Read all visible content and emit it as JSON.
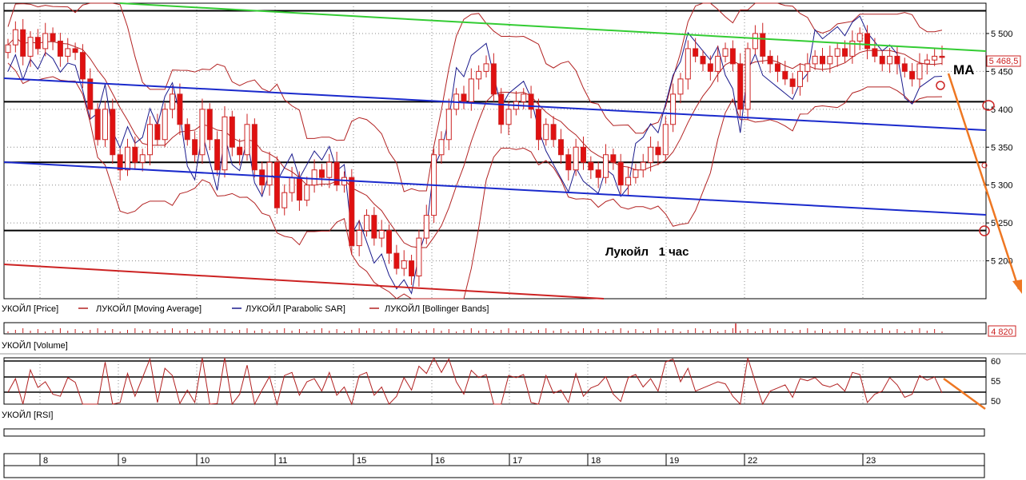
{
  "price_panel": {
    "annotation": "Лукойл   1 час",
    "ma_label": "MA",
    "last_price_badge": "5 468,5",
    "y_ticks": [
      "5 500",
      "5 450",
      "5 400",
      "5 350",
      "5 300",
      "5 250",
      "5 200"
    ],
    "legend": [
      {
        "label": "УКОЙЛ [Price]",
        "color": "#000000"
      },
      {
        "label": "ЛУКОЙЛ [Moving Average]",
        "color": "#b22222"
      },
      {
        "label": "ЛУКОЙЛ [Parabolic SAR]",
        "color": "#1a1a8c"
      },
      {
        "label": "ЛУКОЙЛ [Bollinger Bands]",
        "color": "#b22222"
      }
    ]
  },
  "volume_panel": {
    "legend": "УКОЙЛ [Volume]",
    "value_badge": "4 820"
  },
  "rsi_panel": {
    "legend": "УКОЙЛ [RSI]",
    "y_ticks": [
      "60",
      "55",
      "50"
    ]
  },
  "date_axis": {
    "labels": [
      "8",
      "9",
      "10",
      "11",
      "15",
      "16",
      "17",
      "18",
      "19",
      "22",
      "23"
    ]
  },
  "colors": {
    "bull_candle": "#ffffff",
    "bear_candle": "#e01010",
    "resistance_line": "#33cc33",
    "channel_lines": "#1a2acc",
    "support_line": "#cc2222",
    "horizontal_levels": "#000000",
    "forecast_arrow": "#ee7722"
  },
  "chart_data": {
    "type": "candlestick",
    "title": "Лукойл   1 час",
    "ylabel": "",
    "xlabel": "",
    "ylim": [
      5150,
      5540
    ],
    "horizontal_levels": [
      5530,
      5410,
      5330,
      5240
    ],
    "dates": [
      "8",
      "9",
      "10",
      "11",
      "15",
      "16",
      "17",
      "18",
      "19",
      "22",
      "23"
    ],
    "last_price": 5468.5,
    "last_volume": 4820,
    "rsi_levels": [
      60,
      55,
      50
    ],
    "candles_close": [
      5485,
      5505,
      5470,
      5495,
      5480,
      5500,
      5490,
      5470,
      5480,
      5475,
      5440,
      5400,
      5360,
      5400,
      5340,
      5320,
      5350,
      5330,
      5340,
      5380,
      5360,
      5400,
      5420,
      5380,
      5360,
      5340,
      5400,
      5360,
      5320,
      5390,
      5350,
      5340,
      5380,
      5320,
      5300,
      5330,
      5270,
      5290,
      5310,
      5280,
      5300,
      5320,
      5310,
      5330,
      5300,
      5310,
      5220,
      5240,
      5260,
      5230,
      5240,
      5210,
      5190,
      5200,
      5180,
      5230,
      5260,
      5340,
      5360,
      5400,
      5420,
      5410,
      5440,
      5450,
      5460,
      5420,
      5380,
      5400,
      5410,
      5420,
      5400,
      5360,
      5380,
      5360,
      5340,
      5320,
      5350,
      5330,
      5320,
      5310,
      5340,
      5330,
      5300,
      5310,
      5320,
      5330,
      5350,
      5340,
      5380,
      5420,
      5440,
      5480,
      5470,
      5460,
      5450,
      5470,
      5480,
      5460,
      5400,
      5480,
      5500,
      5470,
      5460,
      5450,
      5440,
      5430,
      5450,
      5460,
      5470,
      5460,
      5470,
      5480,
      5470,
      5490,
      5500,
      5480,
      5470,
      5460,
      5470,
      5460,
      5450,
      5440,
      5460,
      5465,
      5470,
      5468.5
    ]
  }
}
